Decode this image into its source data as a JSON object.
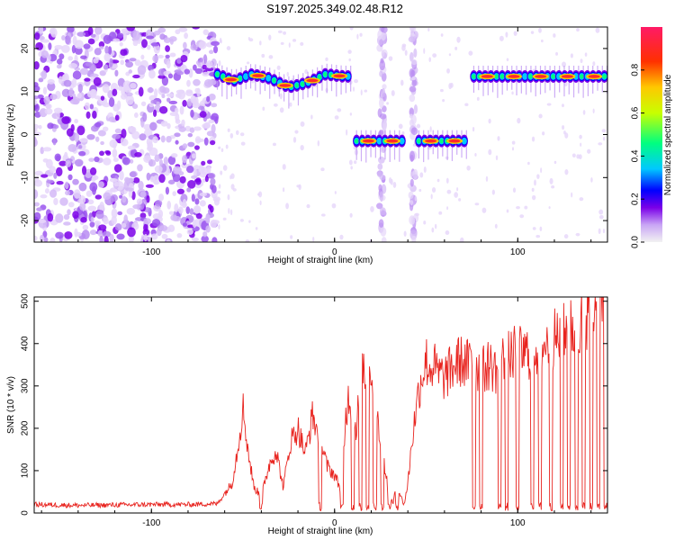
{
  "title": "S197.2025.349.02.48.R12",
  "chart_data": [
    {
      "type": "heatmap",
      "xlabel": "Height of straight line (km)",
      "ylabel": "Frequency (Hz)",
      "xlim": [
        -164,
        149
      ],
      "ylim": [
        -25,
        25
      ],
      "xticks": [
        -100,
        0,
        100
      ],
      "yticks": [
        -20,
        -10,
        0,
        10,
        20
      ],
      "xtick_labels": [
        "-100",
        "0",
        "100"
      ],
      "ytick_labels": [
        "-20",
        "-10",
        "0",
        "10",
        "20"
      ],
      "colorbar": {
        "label": "Normalized spectral amplitude",
        "range": [
          0,
          1
        ],
        "ticks": [
          0.0,
          0.2,
          0.4,
          0.6,
          0.8
        ],
        "tick_labels": [
          "0.0",
          "0.2",
          "0.4",
          "0.6",
          "0.8"
        ],
        "colors": [
          "#f2f2f2",
          "#c9a5f5",
          "#7b00e8",
          "#0000ff",
          "#00c8ff",
          "#00ff80",
          "#c8ff00",
          "#ffc800",
          "#ff3000",
          "#ff1a66"
        ]
      },
      "noise_region": {
        "x_range": [
          -164,
          -64
        ],
        "y_range": [
          -25,
          25
        ]
      },
      "tracks": [
        {
          "name": "upper track (left)",
          "x": [
            -64,
            -55,
            -45,
            -35,
            -25,
            -15,
            -5,
            5,
            10
          ],
          "y": [
            14,
            12.5,
            14,
            13,
            11,
            12,
            14,
            13.5,
            13.5
          ]
        },
        {
          "name": "zero track A",
          "x": [
            12,
            38
          ],
          "y": [
            -1.5,
            -1.5
          ]
        },
        {
          "name": "zero track B",
          "x": [
            46,
            72
          ],
          "y": [
            -1.5,
            -1.5
          ]
        },
        {
          "name": "upper track (right)",
          "x": [
            76,
            149
          ],
          "y": [
            13.5,
            13.5
          ]
        }
      ],
      "vertical_streaks": [
        {
          "x": 26,
          "y_range": [
            -25,
            25
          ]
        },
        {
          "x": 43,
          "y_range": [
            -25,
            25
          ]
        }
      ]
    },
    {
      "type": "line",
      "xlabel": "Height of straight line (km)",
      "ylabel": "SNR (10 * v/v)",
      "xlim": [
        -164,
        149
      ],
      "ylim": [
        0,
        510
      ],
      "xticks": [
        -100,
        0,
        100
      ],
      "yticks": [
        0,
        100,
        200,
        300,
        400,
        500
      ],
      "xtick_labels": [
        "-100",
        "0",
        "100"
      ],
      "ytick_labels": [
        "0",
        "100",
        "200",
        "300",
        "400",
        "500"
      ],
      "series": [
        {
          "name": "SNR",
          "color": "#e8231e",
          "x": [
            -164,
            -140,
            -120,
            -100,
            -80,
            -64,
            -56,
            -53,
            -50,
            -47,
            -44,
            -40,
            -36,
            -32,
            -28,
            -24,
            -20,
            -16,
            -12,
            -8,
            -4,
            0,
            4,
            6,
            8,
            10,
            12,
            14,
            16,
            18,
            20,
            22,
            24,
            26,
            28,
            30,
            32,
            34,
            36,
            38,
            40,
            42,
            44,
            46,
            48,
            50,
            52,
            54,
            56,
            60,
            64,
            68,
            72,
            76,
            80,
            84,
            88,
            92,
            96,
            100,
            104,
            108,
            112,
            116,
            120,
            124,
            128,
            132,
            136,
            140,
            144,
            149
          ],
          "y": [
            20,
            18,
            19,
            20,
            20,
            22,
            70,
            150,
            250,
            140,
            60,
            40,
            110,
            150,
            60,
            170,
            200,
            140,
            230,
            170,
            110,
            90,
            50,
            230,
            280,
            240,
            200,
            310,
            350,
            290,
            350,
            250,
            200,
            150,
            90,
            40,
            25,
            70,
            40,
            20,
            70,
            160,
            230,
            290,
            330,
            360,
            340,
            350,
            330,
            320,
            340,
            360,
            350,
            360,
            330,
            350,
            340,
            360,
            370,
            380,
            375,
            385,
            390,
            400,
            410,
            420,
            430,
            440,
            460,
            480,
            500,
            470
          ]
        }
      ],
      "dropouts_x": [
        -40,
        -8,
        4,
        10,
        14,
        18,
        22,
        26,
        30,
        34,
        76,
        80,
        90,
        94,
        100,
        108,
        112,
        118,
        124,
        128,
        132,
        136,
        140,
        144,
        148
      ]
    }
  ]
}
